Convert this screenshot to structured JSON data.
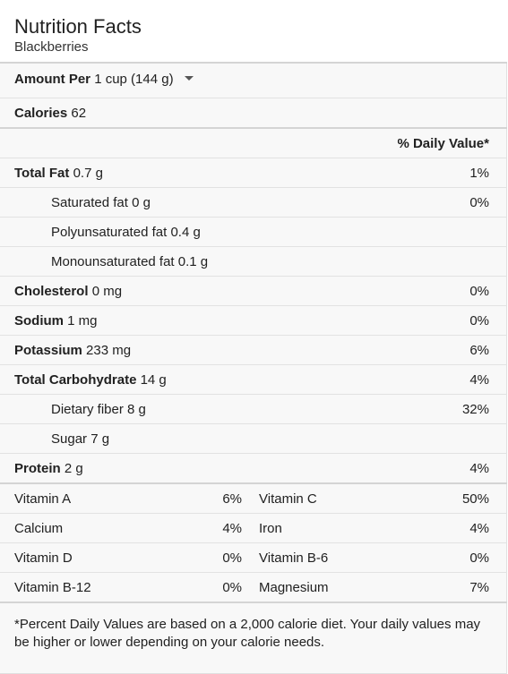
{
  "header": {
    "title": "Nutrition Facts",
    "subtitle": "Blackberries"
  },
  "serving": {
    "label": "Amount Per",
    "value": "1 cup (144 g)",
    "dropdown_icon": "caret-down-icon"
  },
  "calories": {
    "label": "Calories",
    "value": "62"
  },
  "daily_value_header": "% Daily Value*",
  "nutrients": [
    {
      "label": "Total Fat",
      "amount": "0.7 g",
      "pct": "1%"
    },
    {
      "label": "Saturated fat",
      "amount": "0 g",
      "pct": "0%"
    },
    {
      "label": "Polyunsaturated fat",
      "amount": "0.4 g",
      "pct": ""
    },
    {
      "label": "Monounsaturated fat",
      "amount": "0.1 g",
      "pct": ""
    },
    {
      "label": "Cholesterol",
      "amount": "0 mg",
      "pct": "0%"
    },
    {
      "label": "Sodium",
      "amount": "1 mg",
      "pct": "0%"
    },
    {
      "label": "Potassium",
      "amount": "233 mg",
      "pct": "6%"
    },
    {
      "label": "Total Carbohydrate",
      "amount": "14 g",
      "pct": "4%"
    },
    {
      "label": "Dietary fiber",
      "amount": "8 g",
      "pct": "32%"
    },
    {
      "label": "Sugar",
      "amount": "7 g",
      "pct": ""
    },
    {
      "label": "Protein",
      "amount": "2 g",
      "pct": "4%"
    }
  ],
  "vitamins": [
    {
      "left_label": "Vitamin A",
      "left_pct": "6%",
      "right_label": "Vitamin C",
      "right_pct": "50%"
    },
    {
      "left_label": "Calcium",
      "left_pct": "4%",
      "right_label": "Iron",
      "right_pct": "4%"
    },
    {
      "left_label": "Vitamin D",
      "left_pct": "0%",
      "right_label": "Vitamin B-6",
      "right_pct": "0%"
    },
    {
      "left_label": "Vitamin B-12",
      "left_pct": "0%",
      "right_label": "Magnesium",
      "right_pct": "7%"
    }
  ],
  "footnote": "*Percent Daily Values are based on a 2,000 calorie diet. Your daily values may be higher or lower depending on your calorie needs."
}
